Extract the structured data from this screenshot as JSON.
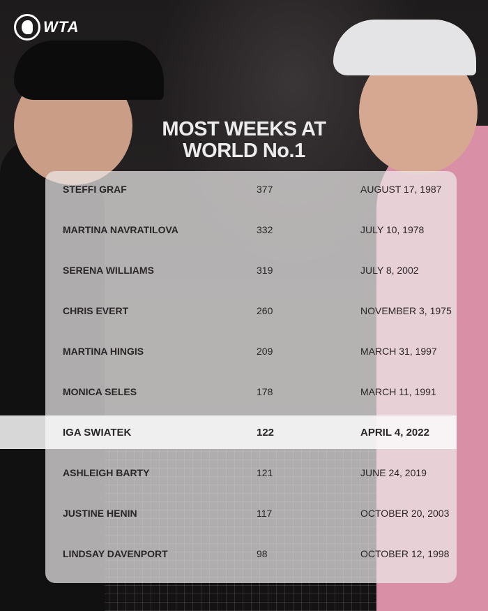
{
  "brand": {
    "logo": "WTA"
  },
  "title_lines": [
    "MOST WEEKS AT",
    "WORLD No.1"
  ],
  "rows": [
    {
      "name": "STEFFI GRAF",
      "weeks": "377",
      "date": "AUGUST 17, 1987"
    },
    {
      "name": "MARTINA NAVRATILOVA",
      "weeks": "332",
      "date": "JULY 10, 1978"
    },
    {
      "name": "SERENA WILLIAMS",
      "weeks": "319",
      "date": "JULY 8, 2002"
    },
    {
      "name": "CHRIS EVERT",
      "weeks": "260",
      "date": "NOVEMBER 3, 1975"
    },
    {
      "name": "MARTINA HINGIS",
      "weeks": "209",
      "date": "MARCH 31, 1997"
    },
    {
      "name": "MONICA SELES",
      "weeks": "178",
      "date": "MARCH 11, 1991"
    },
    {
      "name": "IGA SWIATEK",
      "weeks": "122",
      "date": "APRIL 4, 2022",
      "highlighted": true
    },
    {
      "name": "ASHLEIGH BARTY",
      "weeks": "121",
      "date": "JUNE 24, 2019"
    },
    {
      "name": "JUSTINE HENIN",
      "weeks": "117",
      "date": "OCTOBER 20, 2003"
    },
    {
      "name": "LINDSAY DAVENPORT",
      "weeks": "98",
      "date": "OCTOBER 12, 1998"
    }
  ]
}
